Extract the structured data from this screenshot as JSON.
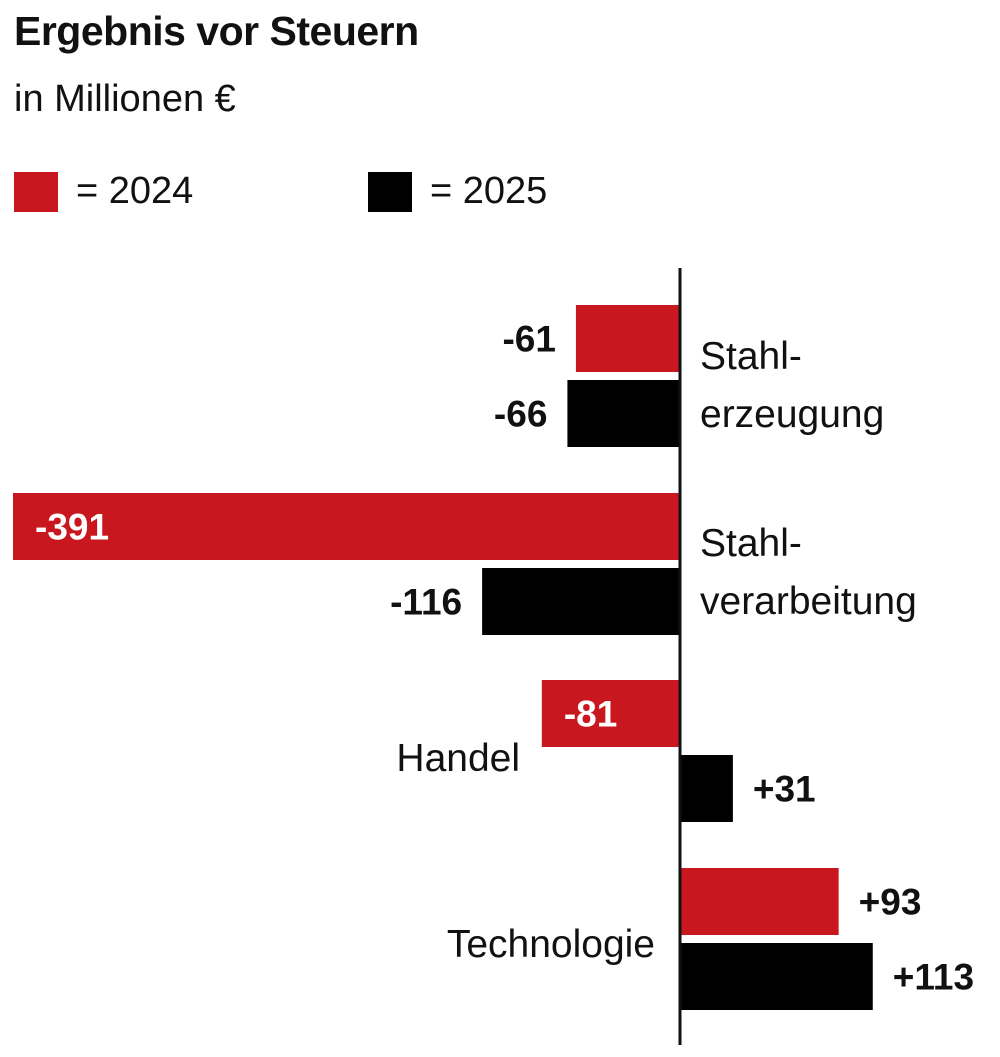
{
  "chart_data": {
    "type": "bar",
    "orientation": "horizontal",
    "title": "Ergebnis vor Steuern",
    "subtitle": "in Millionen €",
    "categories": [
      "Stahl-\nerzeugung",
      "Stahl-\nverarbeitung",
      "Handel",
      "Technologie"
    ],
    "series": [
      {
        "name": "= 2024",
        "color": "#c8171e",
        "values": [
          -61,
          -391,
          -81,
          93
        ],
        "labels": [
          "-61",
          "-391",
          "-81",
          "+93"
        ]
      },
      {
        "name": "= 2025",
        "color": "#000000",
        "values": [
          -66,
          -116,
          31,
          113
        ],
        "labels": [
          "-66",
          "-116",
          "+31",
          "+113"
        ]
      }
    ],
    "xlim": [
      -391,
      113
    ],
    "grid": false,
    "legend_position": "top-left"
  }
}
